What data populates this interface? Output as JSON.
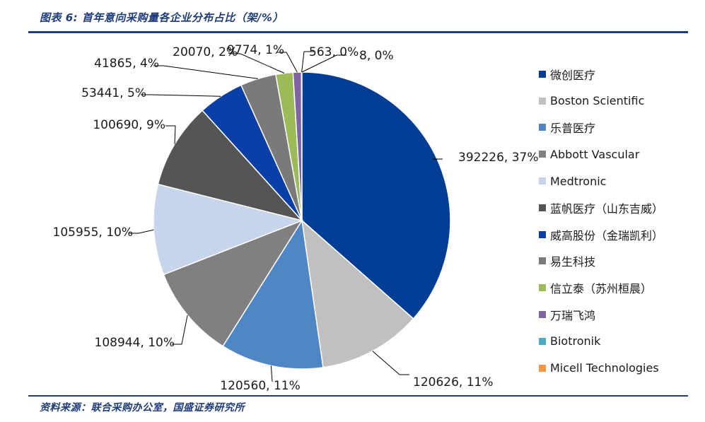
{
  "figure": {
    "title": "图表 6:  首年意向采购量各企业分布占比（架/%）",
    "source": "资料来源：联合采购办公室，国盛证券研究所"
  },
  "chart_data": {
    "type": "pie",
    "title": "",
    "start_angle_deg": 0,
    "direction": "clockwise",
    "legend_position": "right",
    "slices": [
      {
        "name": "微创医疗",
        "value": 392226,
        "label": "392226, 37%",
        "color": "#003e96"
      },
      {
        "name": "Boston Scientific",
        "value": 120626,
        "label": "120626, 11%",
        "color": "#c0c0c0"
      },
      {
        "name": "乐普医疗",
        "value": 120560,
        "label": "120560, 11%",
        "color": "#4f86c6"
      },
      {
        "name": "Abbott Vascular",
        "value": 108944,
        "label": "108944, 10%",
        "color": "#808080"
      },
      {
        "name": "Medtronic",
        "value": 105955,
        "label": "105955, 10%",
        "color": "#c6d4ec"
      },
      {
        "name": "蓝帆医疗（山东吉威）",
        "value": 100690,
        "label": "100690, 9%",
        "color": "#555555"
      },
      {
        "name": "威高股份（金瑞凯利）",
        "value": 53441,
        "label": "53441, 5%",
        "color": "#0a3fa8"
      },
      {
        "name": "易生科技",
        "value": 41865,
        "label": "41865, 4%",
        "color": "#7a7a7a"
      },
      {
        "name": "信立泰（苏州桓晨）",
        "value": 20070,
        "label": "20070, 2%",
        "color": "#9bbb59"
      },
      {
        "name": "万瑞飞鸿",
        "value": 9774,
        "label": "9774, 1%",
        "color": "#8064a2"
      },
      {
        "name": "Biotronik",
        "value": 563,
        "label": "563, 0%",
        "color": "#4bacc6"
      },
      {
        "name": "Micell Technologies",
        "value": 8,
        "label": "8, 0%",
        "color": "#f79646"
      }
    ]
  }
}
